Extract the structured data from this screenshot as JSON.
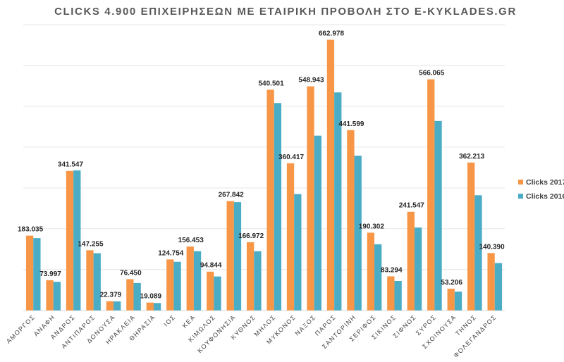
{
  "chart_data": {
    "type": "bar",
    "title": "CLICKS 4.900 ΕΠΙΧΕΙΡΗΣΕΩΝ ΜΕ ΕΤΑΙΡΙΚΗ ΠΡΟΒΟΛΗ ΣΤΟ E-KYKLADES.GR",
    "xlabel": "",
    "ylabel": "",
    "ylim": [
      0,
      700000
    ],
    "grid": true,
    "legend_position": "right",
    "categories": [
      "ΑΜΟΡΓΟΣ",
      "ΑΝΑΦΗ",
      "ΑΝΔΡΟΣ",
      "ΑΝΤΙΠΑΡΟΣ",
      "ΔΟΝΟΥΣΑ",
      "ΗΡΑΚΛΕΙΑ",
      "ΘΗΡΑΣΙΑ",
      "ΙΟΣ",
      "ΚΕΑ",
      "ΚΙΜΩΛΟΣ",
      "ΚΟΥΦΟΝΗΣΙΑ",
      "ΚΥΘΝΟΣ",
      "ΜΗΛΟΣ",
      "ΜΥΚΟΝΟΣ",
      "ΝΑΞΟΣ",
      "ΠΑΡΟΣ",
      "ΣΑΝΤΟΡΙΝΗ",
      "ΣΕΡΙΦΟΣ",
      "ΣΙΚΙΝΟΣ",
      "ΣΙΦΝΟΣ",
      "ΣΥΡΟΣ",
      "ΣΧΟΙΝΟΥΣΑ",
      "ΤΗΝΟΣ",
      "ΦΟΛΕΓΑΝΔΡΟΣ"
    ],
    "series": [
      {
        "name": "Clicks 2017",
        "color": "#F79646",
        "values": [
          183035,
          73997,
          341547,
          147255,
          22379,
          76450,
          19089,
          124754,
          156453,
          94844,
          267842,
          166972,
          540501,
          360417,
          548943,
          662978,
          441599,
          190302,
          83294,
          241547,
          566065,
          53206,
          362213,
          140390
        ],
        "data_labels": [
          "183.035",
          "73.997",
          "341.547",
          "147.255",
          "22.379",
          "76.450",
          "19.089",
          "124.754",
          "156.453",
          "94.844",
          "267.842",
          "166.972",
          "540.501",
          "360.417",
          "548.943",
          "662.978",
          "441.599",
          "190.302",
          "83.294",
          "241.547",
          "566.065",
          "53.206",
          "362.213",
          "140.390"
        ]
      },
      {
        "name": "Clicks 2016",
        "color": "#4BACC6",
        "values": [
          177000,
          70000,
          343000,
          140000,
          22000,
          67000,
          18000,
          119000,
          145000,
          83000,
          265000,
          145000,
          508000,
          285000,
          428000,
          534000,
          379000,
          162000,
          72000,
          203000,
          464000,
          46000,
          282000,
          116000
        ]
      }
    ]
  }
}
